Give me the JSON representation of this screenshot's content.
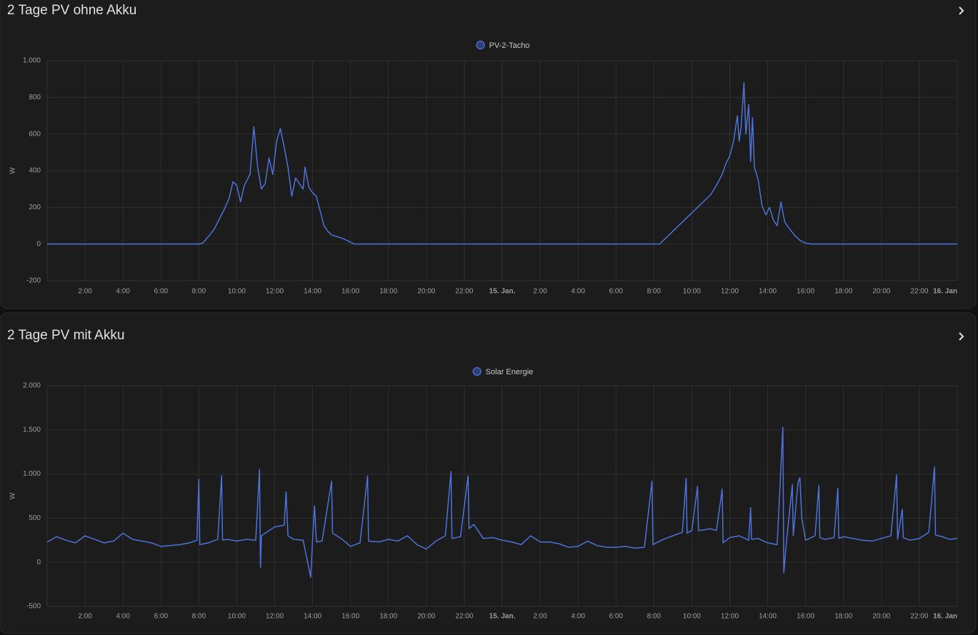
{
  "chart_data": [
    {
      "type": "line",
      "title": "2 Tage PV ohne Akku",
      "ylabel": "W",
      "x": [
        0,
        8,
        8.2,
        8.5,
        8.8,
        9.0,
        9.3,
        9.6,
        9.8,
        10.0,
        10.2,
        10.4,
        10.7,
        10.9,
        11.1,
        11.3,
        11.5,
        11.7,
        11.9,
        12.1,
        12.3,
        12.5,
        12.7,
        12.9,
        13.1,
        13.3,
        13.5,
        13.6,
        13.8,
        14.0,
        14.2,
        14.4,
        14.6,
        14.8,
        15.0,
        15.3,
        15.6,
        15.9,
        16.2,
        32.3,
        32.6,
        33.0,
        33.4,
        33.8,
        34.2,
        34.6,
        35.0,
        35.3,
        35.6,
        35.8,
        36.0,
        36.2,
        36.4,
        36.5,
        36.6,
        36.75,
        36.85,
        37.0,
        37.1,
        37.2,
        37.3,
        37.5,
        37.7,
        37.9,
        38.1,
        38.3,
        38.5,
        38.7,
        38.9,
        39.1,
        39.4,
        39.7,
        40.0,
        40.3,
        48
      ],
      "series": [
        {
          "name": "PV-2-Tacho",
          "color": "#4f72d8",
          "values": [
            0,
            0,
            5,
            40,
            80,
            120,
            180,
            250,
            340,
            320,
            230,
            320,
            380,
            640,
            420,
            300,
            330,
            470,
            380,
            560,
            630,
            530,
            420,
            260,
            360,
            330,
            300,
            420,
            310,
            280,
            260,
            180,
            100,
            70,
            50,
            40,
            30,
            15,
            0,
            0,
            30,
            70,
            110,
            150,
            190,
            230,
            270,
            320,
            380,
            440,
            480,
            560,
            700,
            560,
            640,
            880,
            600,
            760,
            450,
            690,
            420,
            350,
            210,
            160,
            200,
            130,
            100,
            230,
            120,
            90,
            50,
            20,
            5,
            0,
            0
          ]
        }
      ],
      "xlim": [
        0,
        48
      ],
      "xticks": [
        {
          "value": 2,
          "label": "2:00"
        },
        {
          "value": 4,
          "label": "4:00"
        },
        {
          "value": 6,
          "label": "6:00"
        },
        {
          "value": 8,
          "label": "8:00"
        },
        {
          "value": 10,
          "label": "10:00"
        },
        {
          "value": 12,
          "label": "12:00"
        },
        {
          "value": 14,
          "label": "14:00"
        },
        {
          "value": 16,
          "label": "16:00"
        },
        {
          "value": 18,
          "label": "18:00"
        },
        {
          "value": 20,
          "label": "20:00"
        },
        {
          "value": 22,
          "label": "22:00"
        },
        {
          "value": 24,
          "label": "15. Jan."
        },
        {
          "value": 26,
          "label": "2:00"
        },
        {
          "value": 28,
          "label": "4:00"
        },
        {
          "value": 30,
          "label": "6:00"
        },
        {
          "value": 32,
          "label": "8:00"
        },
        {
          "value": 34,
          "label": "10:00"
        },
        {
          "value": 36,
          "label": "12:00"
        },
        {
          "value": 38,
          "label": "14:00"
        },
        {
          "value": 40,
          "label": "16:00"
        },
        {
          "value": 42,
          "label": "18:00"
        },
        {
          "value": 44,
          "label": "20:00"
        },
        {
          "value": 46,
          "label": "22:00"
        },
        {
          "value": 48,
          "label": "16. Jan"
        }
      ],
      "ylim": [
        -200,
        1000
      ],
      "yticks": [
        -200,
        0,
        200,
        400,
        600,
        800,
        {
          "value": 1000,
          "label": "1.000"
        }
      ],
      "grid": true
    },
    {
      "type": "line",
      "title": "2 Tage PV mit Akku",
      "ylabel": "W",
      "x": [
        0,
        0.5,
        1,
        1.5,
        2,
        2.5,
        3,
        3.5,
        4,
        4.5,
        5,
        5.5,
        6,
        6.5,
        7,
        7.5,
        7.9,
        8.0,
        8.05,
        8.5,
        9,
        9.2,
        9.25,
        9.5,
        10,
        10.5,
        11,
        11.2,
        11.25,
        11.3,
        11.5,
        12,
        12.5,
        12.6,
        12.7,
        13,
        13.5,
        13.9,
        14,
        14.1,
        14.2,
        14.5,
        15,
        15.05,
        15.5,
        16,
        16.5,
        16.9,
        16.95,
        17.5,
        18,
        18.5,
        19,
        19.5,
        20,
        20.5,
        21,
        21.3,
        21.35,
        21.8,
        22.2,
        22.25,
        22.5,
        23,
        23.5,
        24,
        24.5,
        25,
        25.5,
        26,
        26.5,
        27,
        27.5,
        28,
        28.5,
        29,
        29.5,
        30,
        30.5,
        31,
        31.5,
        31.9,
        31.95,
        32.5,
        33,
        33.5,
        33.7,
        33.75,
        34,
        34.3,
        34.35,
        34.7,
        35,
        35.3,
        35.6,
        35.65,
        36,
        36.5,
        37,
        37.1,
        37.15,
        37.5,
        38,
        38.5,
        38.8,
        38.85,
        39,
        39.3,
        39.35,
        39.6,
        39.7,
        39.8,
        40,
        40.5,
        40.7,
        40.75,
        41,
        41.5,
        41.7,
        41.75,
        42,
        42.5,
        43,
        43.5,
        44,
        44.5,
        44.8,
        44.85,
        45.1,
        45.15,
        45.5,
        46,
        46.5,
        46.8,
        46.85,
        47.2,
        47.6,
        48
      ],
      "series": [
        {
          "name": "Solar Energie",
          "color": "#4f72d8",
          "values": [
            230,
            290,
            250,
            220,
            300,
            260,
            220,
            240,
            330,
            260,
            240,
            220,
            180,
            190,
            200,
            220,
            250,
            940,
            200,
            220,
            260,
            980,
            250,
            260,
            240,
            260,
            250,
            1050,
            -60,
            300,
            330,
            400,
            420,
            800,
            300,
            260,
            250,
            -170,
            260,
            640,
            230,
            240,
            920,
            330,
            270,
            180,
            220,
            980,
            240,
            230,
            260,
            240,
            300,
            200,
            150,
            240,
            300,
            1030,
            270,
            290,
            980,
            380,
            430,
            270,
            280,
            250,
            230,
            200,
            300,
            230,
            230,
            210,
            170,
            180,
            240,
            190,
            170,
            170,
            180,
            160,
            170,
            920,
            200,
            260,
            300,
            340,
            950,
            330,
            360,
            860,
            360,
            370,
            380,
            360,
            830,
            220,
            280,
            300,
            250,
            620,
            260,
            270,
            220,
            200,
            1530,
            -120,
            250,
            880,
            300,
            900,
            960,
            500,
            250,
            300,
            870,
            280,
            260,
            280,
            840,
            270,
            290,
            270,
            250,
            240,
            270,
            300,
            990,
            260,
            600,
            280,
            250,
            270,
            340,
            1080,
            310,
            290,
            260,
            270
          ]
        }
      ],
      "xlim": [
        0,
        48
      ],
      "xticks": [
        {
          "value": 2,
          "label": "2:00"
        },
        {
          "value": 4,
          "label": "4:00"
        },
        {
          "value": 6,
          "label": "6:00"
        },
        {
          "value": 8,
          "label": "8:00"
        },
        {
          "value": 10,
          "label": "10:00"
        },
        {
          "value": 12,
          "label": "12:00"
        },
        {
          "value": 14,
          "label": "14:00"
        },
        {
          "value": 16,
          "label": "16:00"
        },
        {
          "value": 18,
          "label": "18:00"
        },
        {
          "value": 20,
          "label": "20:00"
        },
        {
          "value": 22,
          "label": "22:00"
        },
        {
          "value": 24,
          "label": "15. Jan."
        },
        {
          "value": 26,
          "label": "2:00"
        },
        {
          "value": 28,
          "label": "4:00"
        },
        {
          "value": 30,
          "label": "6:00"
        },
        {
          "value": 32,
          "label": "8:00"
        },
        {
          "value": 34,
          "label": "10:00"
        },
        {
          "value": 36,
          "label": "12:00"
        },
        {
          "value": 38,
          "label": "14:00"
        },
        {
          "value": 40,
          "label": "16:00"
        },
        {
          "value": 42,
          "label": "18:00"
        },
        {
          "value": 44,
          "label": "20:00"
        },
        {
          "value": 46,
          "label": "22:00"
        },
        {
          "value": 48,
          "label": "16. Jan"
        }
      ],
      "ylim": [
        -500,
        2000
      ],
      "yticks": [
        -500,
        0,
        500,
        {
          "value": 1000,
          "label": "1.000"
        },
        {
          "value": 1500,
          "label": "1.500"
        },
        {
          "value": 2000,
          "label": "2.000"
        }
      ],
      "grid": true
    }
  ]
}
